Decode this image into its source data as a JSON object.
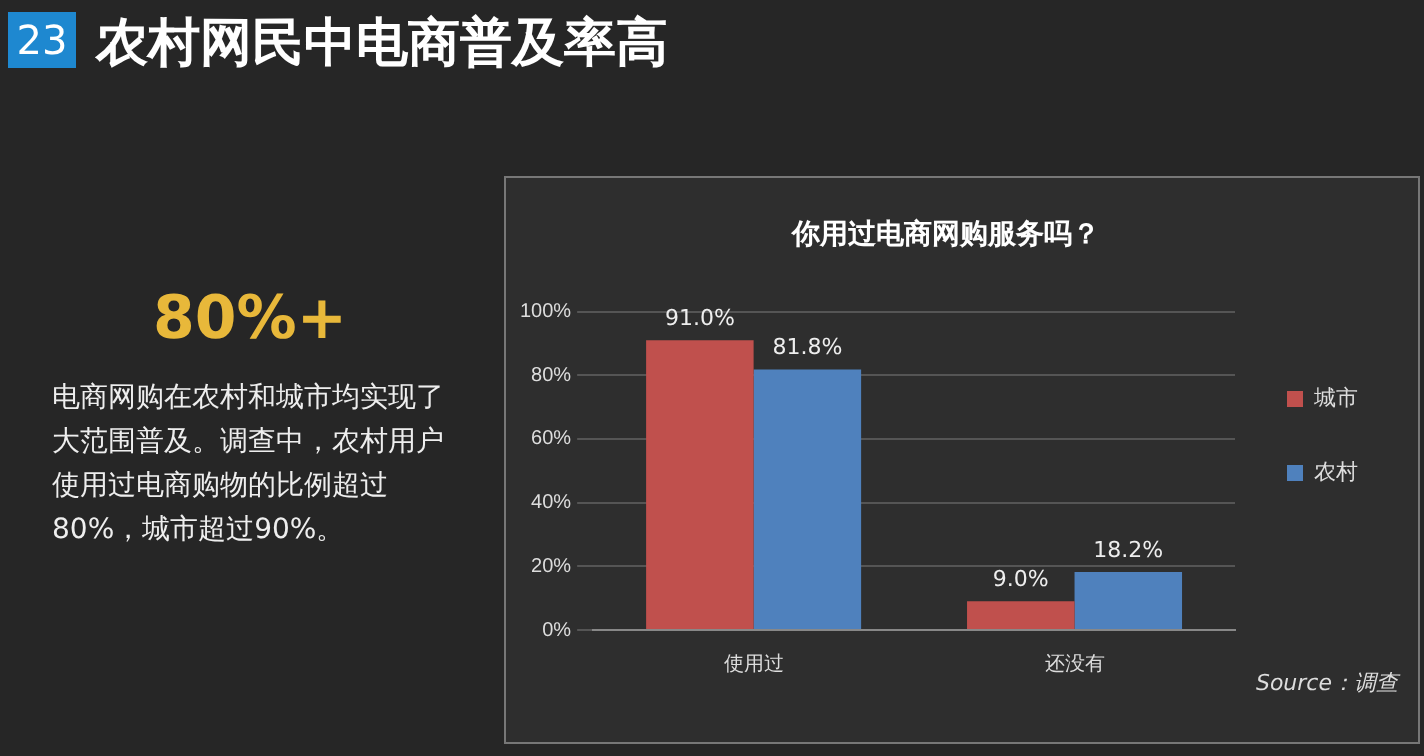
{
  "chart_data": {
    "type": "bar",
    "title": "农村网民中电商普及率高",
    "subtitle": "你用过电商网购服务吗？",
    "categories": [
      "使用过",
      "还没有"
    ],
    "series": [
      {
        "name": "城市",
        "color": "#c0504d",
        "values": [
          91.0,
          9.0
        ],
        "value_labels": [
          "91.0%",
          "9.0%"
        ]
      },
      {
        "name": "农村",
        "color": "#4f81bd",
        "values": [
          81.8,
          18.2
        ],
        "value_labels": [
          "81.8%",
          "18.2%"
        ]
      }
    ],
    "ylim": [
      0,
      100
    ],
    "yticks": [
      {
        "value": 0,
        "label": "0%"
      },
      {
        "value": 20,
        "label": "20%"
      },
      {
        "value": 40,
        "label": "40%"
      },
      {
        "value": 60,
        "label": "60%"
      },
      {
        "value": 80,
        "label": "80%"
      },
      {
        "value": 100,
        "label": "100%"
      }
    ],
    "grid": "y",
    "legend": "right",
    "annotations": [
      "23",
      "80%+",
      "电商网购在农村和城市均实现了大范围普及。调查中，农村用户使用过电商购物的比例超过80%，城市超过90%。",
      "Source：调查"
    ]
  }
}
